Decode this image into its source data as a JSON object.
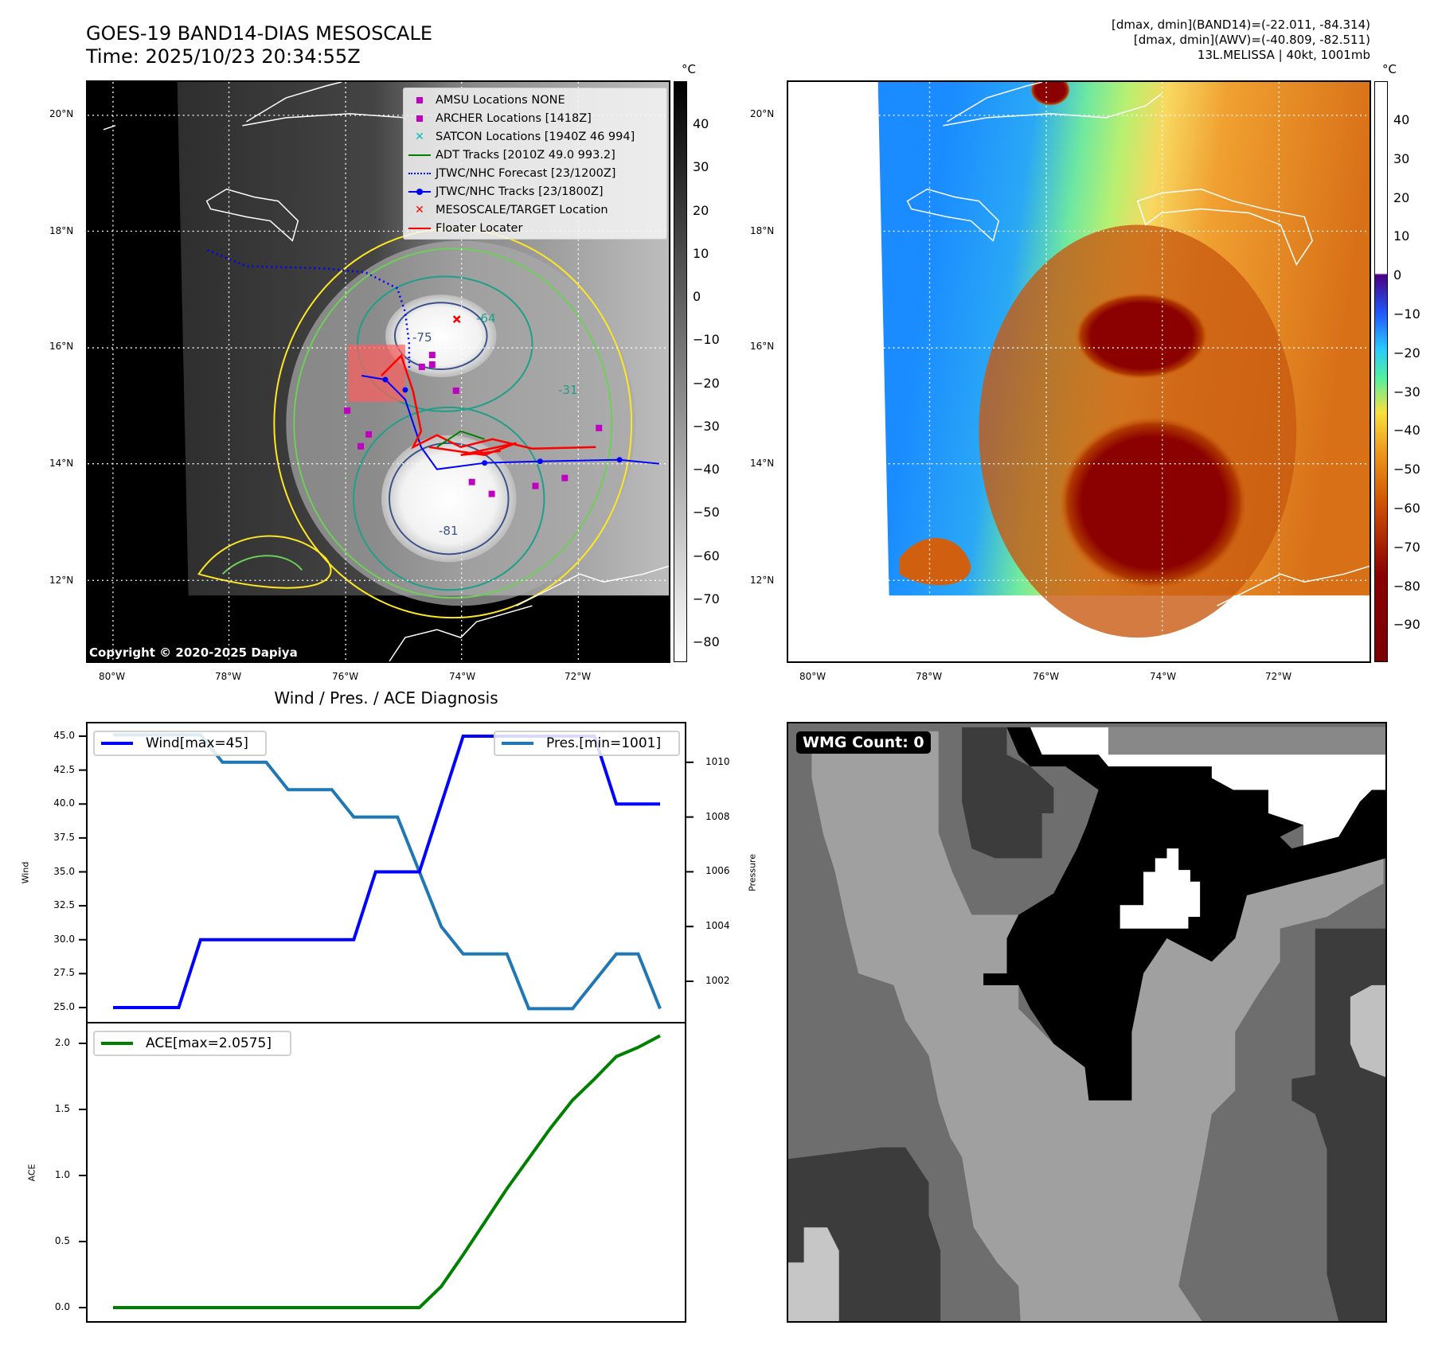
{
  "header": {
    "title": "GOES-19 BAND14-DIAS MESOSCALE",
    "time": "Time: 2025/10/23 20:34:55Z",
    "info_line1": "[dmax, dmin](BAND14)=(-22.011, -84.314)",
    "info_line2": "[dmax, dmin](AWV)=(-40.809, -82.511)",
    "info_line3": "13L.MELISSA | 40kt, 1001mb"
  },
  "maps": {
    "lon_ticks": [
      "80°W",
      "78°W",
      "76°W",
      "74°W",
      "72°W"
    ],
    "lat_ticks": [
      "20°N",
      "18°N",
      "16°N",
      "14°N",
      "12°N"
    ],
    "copyright": "Copyright © 2020-2025 Dapiya",
    "legend": [
      {
        "label": "AMSU Locations NONE",
        "color": "#c000c0",
        "symbol": "square"
      },
      {
        "label": "ARCHER Locations [1418Z]",
        "color": "#c000c0",
        "symbol": "square"
      },
      {
        "label": "SATCON Locations [1940Z 46 994]",
        "color": "#00bfbf",
        "symbol": "x"
      },
      {
        "label": "ADT Tracks [2010Z 49.0 993.2]",
        "color": "#008000",
        "symbol": "line"
      },
      {
        "label": "JTWC/NHC Forecast [23/1200Z]",
        "color": "#0000ff",
        "symbol": "dotted"
      },
      {
        "label": "JTWC/NHC Tracks [23/1800Z]",
        "color": "#0000ff",
        "symbol": "line-dot"
      },
      {
        "label": "MESOSCALE/TARGET Location",
        "color": "#ff0000",
        "symbol": "x"
      },
      {
        "label": "Floater Locater",
        "color": "#ff0000",
        "symbol": "line"
      }
    ],
    "contour_labels": [
      "-64",
      "-75",
      "-81",
      "-31"
    ],
    "left_colorbar": {
      "unit": "°C",
      "ticks": [
        "40",
        "30",
        "20",
        "10",
        "0",
        "−10",
        "−20",
        "−30",
        "−40",
        "−50",
        "−60",
        "−70",
        "−80"
      ],
      "range": [
        50,
        -85
      ]
    },
    "right_colorbar": {
      "unit": "°C",
      "ticks": [
        "40",
        "30",
        "20",
        "10",
        "0",
        "−10",
        "−20",
        "−30",
        "−40",
        "−50",
        "−60",
        "−70",
        "−80",
        "−90"
      ],
      "range": [
        50,
        -100
      ]
    }
  },
  "wmg": {
    "label": "WMG Count: 0"
  },
  "chart_data": [
    {
      "type": "line",
      "title": "Wind / Pres. / ACE Diagnosis",
      "ylabel": "Wind",
      "ylabel_right": "Pressure",
      "ylim": [
        24.5,
        45.8
      ],
      "ylim_right": [
        1000.9,
        1011.3
      ],
      "yticks": [
        "25.0",
        "27.5",
        "30.0",
        "32.5",
        "35.0",
        "37.5",
        "40.0",
        "42.5",
        "45.0"
      ],
      "yticks_right": [
        "1002",
        "1004",
        "1006",
        "1008",
        "1010"
      ],
      "series": [
        {
          "name": "Wind[max=45]",
          "axis": "left",
          "color": "#0000ff",
          "values": [
            25,
            25,
            25,
            25,
            30,
            30,
            30,
            30,
            30,
            30,
            30,
            30,
            35,
            35,
            35,
            40,
            45,
            45,
            45,
            45,
            45,
            45,
            45,
            40,
            40,
            40
          ]
        },
        {
          "name": "Pres.[min=1001]",
          "axis": "right",
          "color": "#1f77b4",
          "values": [
            1011,
            1011,
            1011,
            1011,
            1011,
            1010,
            1010,
            1010,
            1009,
            1009,
            1009,
            1008,
            1008,
            1008,
            1006,
            1004,
            1003,
            1003,
            1003,
            1001,
            1001,
            1001,
            1002,
            1003,
            1003,
            1001
          ]
        }
      ]
    },
    {
      "type": "line",
      "ylabel": "ACE",
      "ylim": [
        -0.1,
        2.15
      ],
      "yticks": [
        "0.0",
        "0.5",
        "1.0",
        "1.5",
        "2.0"
      ],
      "series": [
        {
          "name": "ACE[max=2.0575]",
          "color": "#008000",
          "values": [
            0,
            0,
            0,
            0,
            0,
            0,
            0,
            0,
            0,
            0,
            0,
            0,
            0,
            0,
            0,
            0.16,
            0.4,
            0.65,
            0.9,
            1.13,
            1.36,
            1.57,
            1.73,
            1.9,
            1.97,
            2.0575
          ]
        }
      ]
    }
  ]
}
